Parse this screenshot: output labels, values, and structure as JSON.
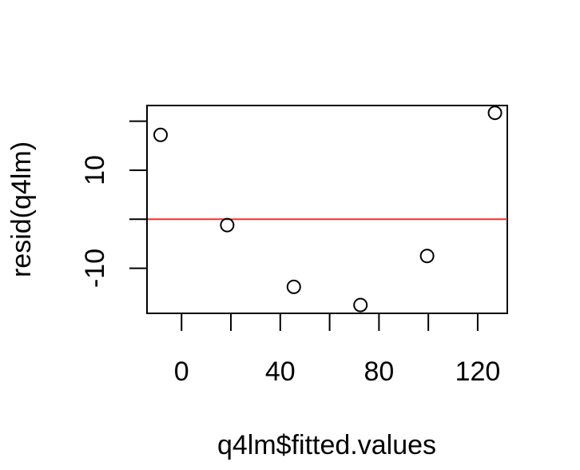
{
  "chart_data": {
    "type": "scatter",
    "title": "",
    "xlabel": "q4lm$fitted.values",
    "ylabel": "resid(q4lm)",
    "xlim": [
      -14,
      132
    ],
    "ylim": [
      -19.2,
      23.2
    ],
    "x_ticks": [
      0,
      20,
      40,
      60,
      80,
      100,
      120
    ],
    "x_tick_labels": [
      "0",
      "",
      "40",
      "",
      "80",
      "",
      "120"
    ],
    "y_ticks": [
      -10,
      0,
      10,
      20
    ],
    "y_tick_labels": [
      "-10",
      "",
      "10",
      ""
    ],
    "points": [
      {
        "x": -8.5,
        "y": 17.2
      },
      {
        "x": 18.5,
        "y": -1.2
      },
      {
        "x": 45.5,
        "y": -13.8
      },
      {
        "x": 72.5,
        "y": -17.5
      },
      {
        "x": 99.5,
        "y": -7.5
      },
      {
        "x": 127.0,
        "y": 21.7
      }
    ],
    "reference_line": {
      "y": 0,
      "color": "#e8372f"
    },
    "grid": false,
    "point_style": "open-circle"
  }
}
